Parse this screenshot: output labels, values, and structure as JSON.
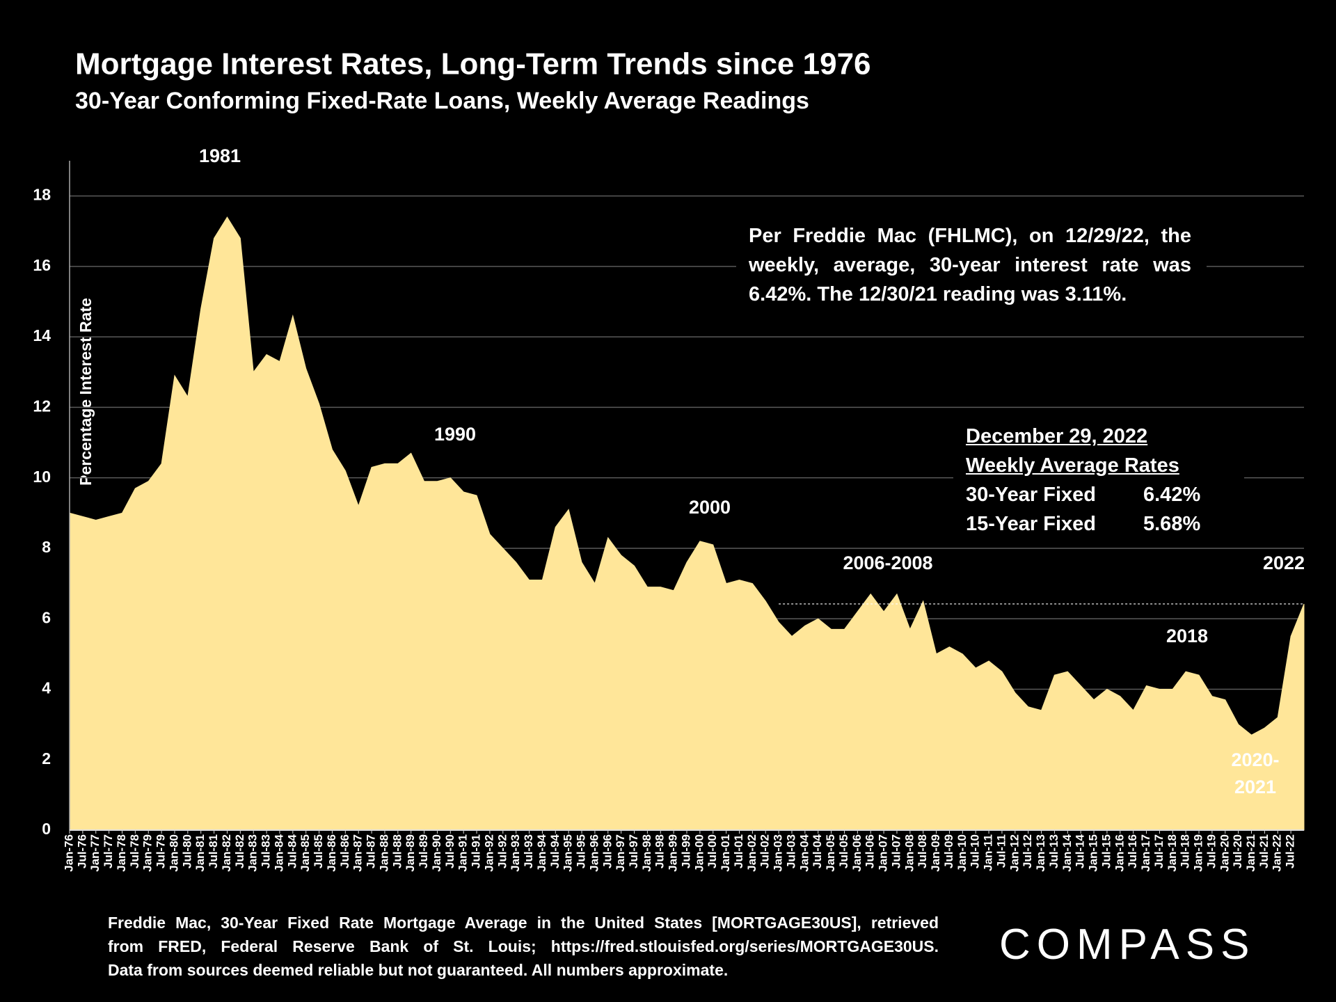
{
  "chart_data": {
    "type": "area",
    "title": "Mortgage Interest Rates, Long-Term Trends since 1976",
    "subtitle": "30-Year Conforming Fixed-Rate Loans, Weekly Average Readings",
    "y_label": "Percentage Interest  Rate",
    "color": "#ffe699",
    "grid": true,
    "ylim": [
      0,
      19
    ],
    "yticks": [
      0,
      2,
      4,
      6,
      8,
      10,
      12,
      14,
      16,
      18
    ],
    "reference_value": 6.42,
    "categories": [
      "Jan-76",
      "Jul-76",
      "Jan-77",
      "Jul-77",
      "Jan-78",
      "Jul-78",
      "Jan-79",
      "Jul-79",
      "Jan-80",
      "Jul-80",
      "Jan-81",
      "Jul-81",
      "Jan-82",
      "Jul-82",
      "Jan-83",
      "Jul-83",
      "Jan-84",
      "Jul-84",
      "Jan-85",
      "Jul-85",
      "Jan-86",
      "Jul-86",
      "Jan-87",
      "Jul-87",
      "Jan-88",
      "Jul-88",
      "Jan-89",
      "Jul-89",
      "Jan-90",
      "Jul-90",
      "Jan-91",
      "Jul-91",
      "Jan-92",
      "Jul-92",
      "Jan-93",
      "Jul-93",
      "Jan-94",
      "Jul-94",
      "Jan-95",
      "Jul-95",
      "Jan-96",
      "Jul-96",
      "Jan-97",
      "Jul-97",
      "Jan-98",
      "Jul-98",
      "Jan-99",
      "Jul-99",
      "Jan-00",
      "Jul-00",
      "Jan-01",
      "Jul-01",
      "Jan-02",
      "Jul-02",
      "Jan-03",
      "Jul-03",
      "Jan-04",
      "Jul-04",
      "Jan-05",
      "Jul-05",
      "Jan-06",
      "Jul-06",
      "Jan-07",
      "Jul-07",
      "Jan-08",
      "Jul-08",
      "Jan-09",
      "Jul-09",
      "Jan-10",
      "Jul-10",
      "Jan-11",
      "Jul-11",
      "Jan-12",
      "Jul-12",
      "Jan-13",
      "Jul-13",
      "Jan-14",
      "Jul-14",
      "Jan-15",
      "Jul-15",
      "Jan-16",
      "Jul-16",
      "Jan-17",
      "Jul-17",
      "Jan-18",
      "Jul-18",
      "Jan-19",
      "Jul-19",
      "Jan-20",
      "Jul-20",
      "Jan-21",
      "Jul-21",
      "Jan-22",
      "Jul-22",
      null
    ],
    "values": [
      9.0,
      8.9,
      8.8,
      8.9,
      9.0,
      9.7,
      9.9,
      10.4,
      12.9,
      12.3,
      14.8,
      16.8,
      17.4,
      16.8,
      13.0,
      13.5,
      13.3,
      14.6,
      13.1,
      12.1,
      10.8,
      10.2,
      9.2,
      10.3,
      10.4,
      10.4,
      10.7,
      9.9,
      9.9,
      10.0,
      9.6,
      9.5,
      8.4,
      8.0,
      7.6,
      7.1,
      7.1,
      8.6,
      9.1,
      7.6,
      7.0,
      8.3,
      7.8,
      7.5,
      6.9,
      6.9,
      6.8,
      7.6,
      8.2,
      8.1,
      7.0,
      7.1,
      7.0,
      6.5,
      5.9,
      5.5,
      5.8,
      6.0,
      5.7,
      5.7,
      6.2,
      6.7,
      6.2,
      6.7,
      5.7,
      6.5,
      5.0,
      5.2,
      5.0,
      4.6,
      4.8,
      4.5,
      3.9,
      3.5,
      3.4,
      4.4,
      4.5,
      4.1,
      3.7,
      4.0,
      3.8,
      3.4,
      4.1,
      4.0,
      4.0,
      4.5,
      4.4,
      3.8,
      3.7,
      3.0,
      2.7,
      2.9,
      3.2,
      5.5,
      6.42
    ],
    "annotations": [
      "1981",
      "1990",
      "2000",
      "2006-2008",
      "2018",
      "2022",
      "2020-",
      "2021"
    ],
    "note": [
      "Per Freddie Mac (FHLMC), on 12/29/22, the",
      "weekly, average, 30-year interest rate was",
      "6.42%. The 12/30/21 reading was 3.11%."
    ],
    "rates_table": {
      "title": [
        "December 29, 2022",
        "Weekly Average Rates"
      ],
      "rows": [
        [
          "30-Year Fixed",
          "6.42%"
        ],
        [
          "15-Year Fixed",
          "5.68%"
        ]
      ]
    },
    "source": [
      "Freddie Mac, 30-Year Fixed Rate Mortgage Average in the United States [MORTGAGE30US], retrieved",
      "from FRED, Federal Reserve Bank of St. Louis; https://fred.stlouisfed.org/series/MORTGAGE30US.",
      "Data from sources deemed reliable but not guaranteed. All numbers approximate."
    ],
    "logo": "COMPASS"
  }
}
